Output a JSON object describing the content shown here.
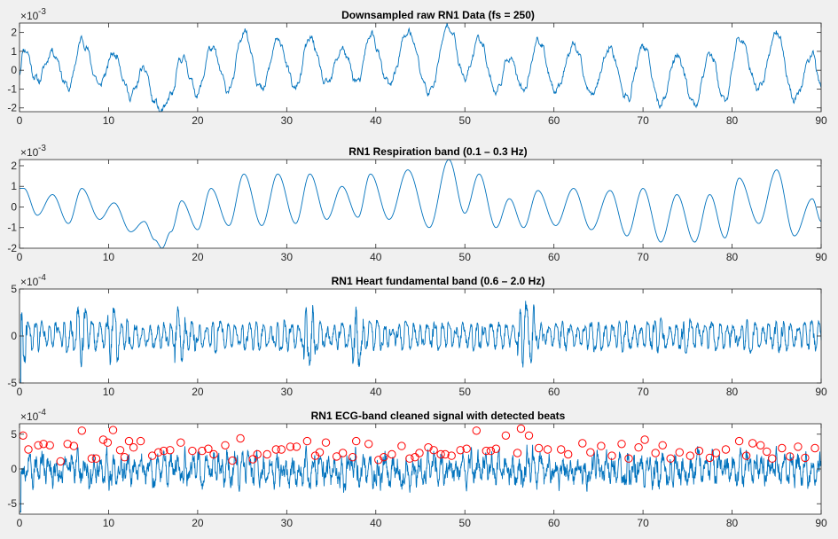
{
  "colors": {
    "line": "#0072bd",
    "marker": "#ff0000",
    "figure_bg": "#f0f0f0",
    "axes_bg": "#ffffff",
    "axis": "#262626"
  },
  "chart_data": [
    {
      "type": "line",
      "title": "Downsampled raw RN1 Data (fs = 250)",
      "exponent_label": "×10",
      "exponent_power": "-3",
      "xlim": [
        0,
        90
      ],
      "ylim": [
        -2.2,
        2.5
      ],
      "xticks": [
        0,
        10,
        20,
        30,
        40,
        50,
        60,
        70,
        80,
        90
      ],
      "xticklabels": [
        "0",
        "10",
        "20",
        "30",
        "40",
        "50",
        "60",
        "70",
        "80",
        "90"
      ],
      "yticks": [
        -2,
        -1,
        0,
        1,
        2
      ],
      "yticklabels": [
        "-2",
        "-1",
        "0",
        "1",
        "2"
      ],
      "series": [
        {
          "peaks": [
            [
              0.5,
              1.2
            ],
            [
              3.7,
              1.0
            ],
            [
              7.0,
              1.6
            ],
            [
              10.6,
              0.9
            ],
            [
              14.0,
              0.1
            ],
            [
              16.0,
              -2.2
            ],
            [
              18.2,
              0.7
            ],
            [
              21.5,
              1.2
            ],
            [
              25.2,
              2.1
            ],
            [
              29.0,
              1.6
            ],
            [
              32.6,
              1.7
            ],
            [
              36.2,
              1.1
            ],
            [
              39.4,
              1.9
            ],
            [
              43.6,
              2.0
            ],
            [
              48.2,
              2.4
            ],
            [
              51.6,
              1.7
            ],
            [
              55.0,
              0.7
            ],
            [
              58.2,
              1.6
            ],
            [
              62.2,
              1.3
            ],
            [
              66.3,
              1.2
            ],
            [
              70.0,
              1.3
            ],
            [
              73.8,
              0.8
            ],
            [
              77.5,
              0.9
            ],
            [
              80.8,
              1.7
            ],
            [
              85.0,
              2.0
            ],
            [
              89.0,
              0.8
            ]
          ],
          "noise": 0.28,
          "seed": 11
        }
      ]
    },
    {
      "type": "line",
      "title": "RN1 Respiration band (0.1 – 0.3 Hz)",
      "exponent_label": "×10",
      "exponent_power": "-3",
      "xlim": [
        0,
        90
      ],
      "ylim": [
        -2.0,
        2.3
      ],
      "xticks": [
        0,
        10,
        20,
        30,
        40,
        50,
        60,
        70,
        80,
        90
      ],
      "xticklabels": [
        "0",
        "10",
        "20",
        "30",
        "40",
        "50",
        "60",
        "70",
        "80",
        "90"
      ],
      "yticks": [
        -2,
        -1,
        0,
        1,
        2
      ],
      "yticklabels": [
        "-2",
        "-1",
        "0",
        "1",
        "2"
      ],
      "series": [
        {
          "peaks": [
            [
              0.5,
              0.9
            ],
            [
              3.7,
              0.6
            ],
            [
              7.0,
              0.9
            ],
            [
              10.6,
              0.2
            ],
            [
              14.0,
              -0.7
            ],
            [
              16.0,
              -2.0
            ],
            [
              18.2,
              0.3
            ],
            [
              21.5,
              0.9
            ],
            [
              25.2,
              1.6
            ],
            [
              29.0,
              1.6
            ],
            [
              32.6,
              1.6
            ],
            [
              36.2,
              1.0
            ],
            [
              39.4,
              1.6
            ],
            [
              43.6,
              1.8
            ],
            [
              48.2,
              2.3
            ],
            [
              51.6,
              1.6
            ],
            [
              55.0,
              0.4
            ],
            [
              58.2,
              0.8
            ],
            [
              62.2,
              0.9
            ],
            [
              66.3,
              0.8
            ],
            [
              70.0,
              0.9
            ],
            [
              73.8,
              0.6
            ],
            [
              77.5,
              0.6
            ],
            [
              80.8,
              1.4
            ],
            [
              85.0,
              1.8
            ],
            [
              89.0,
              0.4
            ]
          ],
          "troughs": [
            [
              2.0,
              -0.4
            ],
            [
              5.5,
              -0.8
            ],
            [
              9.0,
              -0.6
            ],
            [
              12.5,
              -1.2
            ],
            [
              15.2,
              -1.6
            ],
            [
              17.0,
              -1.2
            ],
            [
              20.0,
              -1.1
            ],
            [
              23.5,
              -0.9
            ],
            [
              27.2,
              -0.9
            ],
            [
              31.0,
              -0.8
            ],
            [
              34.5,
              -0.6
            ],
            [
              38.0,
              -0.5
            ],
            [
              41.5,
              -0.6
            ],
            [
              46.0,
              -1.0
            ],
            [
              50.0,
              -0.3
            ],
            [
              53.5,
              -1.0
            ],
            [
              56.6,
              -1.0
            ],
            [
              60.2,
              -0.9
            ],
            [
              64.2,
              -1.1
            ],
            [
              68.2,
              -1.4
            ],
            [
              72.0,
              -1.7
            ],
            [
              75.8,
              -1.7
            ],
            [
              79.2,
              -1.5
            ],
            [
              83.0,
              -0.8
            ],
            [
              87.0,
              -1.4
            ],
            [
              90.0,
              -0.7
            ]
          ]
        }
      ]
    },
    {
      "type": "line",
      "title": "RN1 Heart fundamental band (0.6 – 2.0 Hz)",
      "exponent_label": "×10",
      "exponent_power": "-4",
      "xlim": [
        0,
        90
      ],
      "ylim": [
        -5,
        5
      ],
      "xticks": [
        0,
        10,
        20,
        30,
        40,
        50,
        60,
        70,
        80,
        90
      ],
      "xticklabels": [
        "0",
        "10",
        "20",
        "30",
        "40",
        "50",
        "60",
        "70",
        "80",
        "90"
      ],
      "yticks": [
        -5,
        0,
        5
      ],
      "yticklabels": [
        "-5",
        "0",
        "5"
      ],
      "series": [
        {
          "amplitude": 1.9,
          "burst_times": [
            0.2,
            7.0,
            10.5,
            18.0,
            32.5,
            38.0,
            56.5,
            57.2
          ],
          "burst_amplitude": 3.7,
          "seed": 29
        }
      ]
    },
    {
      "type": "line",
      "title": "RN1 ECG-band cleaned signal with detected beats",
      "exponent_label": "×10",
      "exponent_power": "-4",
      "xlim": [
        0,
        90
      ],
      "ylim": [
        -6.5,
        6.5
      ],
      "xticks": [
        0,
        10,
        20,
        30,
        40,
        50,
        60,
        70,
        80,
        90
      ],
      "xticklabels": [
        "0",
        "10",
        "20",
        "30",
        "40",
        "50",
        "60",
        "70",
        "80",
        "90"
      ],
      "yticks": [
        -5,
        0,
        5
      ],
      "yticklabels": [
        "-5",
        "0",
        "5"
      ],
      "series": [
        {
          "amplitude": 2.6,
          "seed": 53
        }
      ],
      "detected_beats": [
        [
          0.4,
          4.8
        ],
        [
          1.0,
          2.8
        ],
        [
          2.1,
          3.4
        ],
        [
          2.7,
          3.6
        ],
        [
          3.4,
          3.4
        ],
        [
          4.6,
          1.1
        ],
        [
          5.4,
          3.6
        ],
        [
          6.1,
          3.3
        ],
        [
          7.0,
          5.5
        ],
        [
          8.1,
          1.5
        ],
        [
          8.6,
          1.5
        ],
        [
          9.4,
          4.2
        ],
        [
          9.9,
          3.8
        ],
        [
          10.5,
          5.6
        ],
        [
          11.3,
          2.7
        ],
        [
          11.8,
          1.7
        ],
        [
          12.3,
          4.0
        ],
        [
          12.8,
          3.1
        ],
        [
          13.6,
          4.0
        ],
        [
          14.9,
          1.9
        ],
        [
          15.6,
          2.4
        ],
        [
          16.2,
          2.6
        ],
        [
          16.9,
          2.7
        ],
        [
          18.1,
          3.8
        ],
        [
          19.4,
          2.6
        ],
        [
          20.5,
          2.6
        ],
        [
          21.2,
          2.9
        ],
        [
          21.8,
          2.1
        ],
        [
          23.1,
          3.4
        ],
        [
          23.9,
          1.2
        ],
        [
          24.8,
          4.4
        ],
        [
          26.2,
          1.4
        ],
        [
          26.7,
          2.1
        ],
        [
          27.8,
          2.1
        ],
        [
          28.8,
          2.8
        ],
        [
          29.4,
          2.8
        ],
        [
          30.4,
          3.2
        ],
        [
          31.1,
          3.2
        ],
        [
          32.3,
          4.0
        ],
        [
          33.2,
          1.9
        ],
        [
          33.7,
          2.4
        ],
        [
          34.4,
          3.8
        ],
        [
          35.6,
          1.8
        ],
        [
          36.3,
          2.3
        ],
        [
          37.4,
          1.7
        ],
        [
          37.8,
          4.0
        ],
        [
          39.2,
          3.6
        ],
        [
          40.3,
          1.3
        ],
        [
          40.9,
          1.7
        ],
        [
          41.8,
          2.1
        ],
        [
          42.9,
          3.3
        ],
        [
          43.8,
          1.5
        ],
        [
          44.4,
          1.7
        ],
        [
          44.9,
          2.3
        ],
        [
          45.9,
          3.1
        ],
        [
          46.5,
          2.7
        ],
        [
          47.3,
          2.1
        ],
        [
          47.8,
          2.1
        ],
        [
          48.5,
          1.9
        ],
        [
          49.5,
          2.7
        ],
        [
          50.2,
          2.9
        ],
        [
          51.3,
          5.5
        ],
        [
          52.4,
          2.6
        ],
        [
          52.9,
          2.6
        ],
        [
          53.5,
          2.9
        ],
        [
          54.6,
          4.8
        ],
        [
          55.9,
          2.3
        ],
        [
          56.3,
          5.8
        ],
        [
          57.2,
          4.8
        ],
        [
          58.3,
          3.0
        ],
        [
          59.3,
          2.8
        ],
        [
          60.8,
          2.8
        ],
        [
          61.6,
          2.1
        ],
        [
          63.2,
          3.7
        ],
        [
          64.1,
          2.4
        ],
        [
          65.3,
          3.3
        ],
        [
          66.5,
          1.9
        ],
        [
          67.6,
          3.6
        ],
        [
          68.4,
          1.5
        ],
        [
          69.5,
          3.1
        ],
        [
          70.2,
          4.2
        ],
        [
          71.4,
          2.3
        ],
        [
          72.2,
          3.4
        ],
        [
          73.1,
          1.5
        ],
        [
          74.1,
          2.4
        ],
        [
          75.3,
          1.9
        ],
        [
          76.3,
          2.6
        ],
        [
          77.5,
          1.6
        ],
        [
          78.2,
          2.3
        ],
        [
          79.3,
          2.8
        ],
        [
          80.8,
          4.0
        ],
        [
          81.6,
          1.9
        ],
        [
          82.3,
          3.7
        ],
        [
          83.2,
          3.4
        ],
        [
          83.9,
          2.5
        ],
        [
          84.5,
          1.5
        ],
        [
          85.6,
          3.0
        ],
        [
          86.5,
          1.8
        ],
        [
          87.4,
          3.2
        ],
        [
          88.2,
          1.6
        ],
        [
          89.3,
          3.0
        ]
      ]
    }
  ]
}
